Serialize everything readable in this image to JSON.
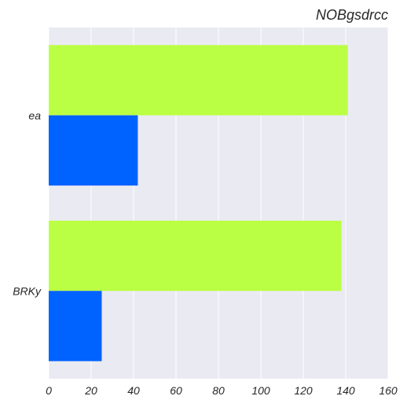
{
  "chart_data": {
    "type": "bar",
    "orientation": "horizontal",
    "title": "NOBgsdrcc",
    "xlabel": "",
    "ylabel": "",
    "categories": [
      "ea",
      "BRKy"
    ],
    "series": [
      {
        "color": "#bbff44",
        "values": [
          141,
          138
        ]
      },
      {
        "color": "#0062ff",
        "values": [
          42,
          25
        ]
      }
    ],
    "xlim": [
      0,
      160
    ],
    "xticks": [
      "0",
      "20",
      "40",
      "60",
      "80",
      "100",
      "120",
      "140",
      "160"
    ],
    "grid": true,
    "legend": "none",
    "background": "#eaeaf2"
  }
}
